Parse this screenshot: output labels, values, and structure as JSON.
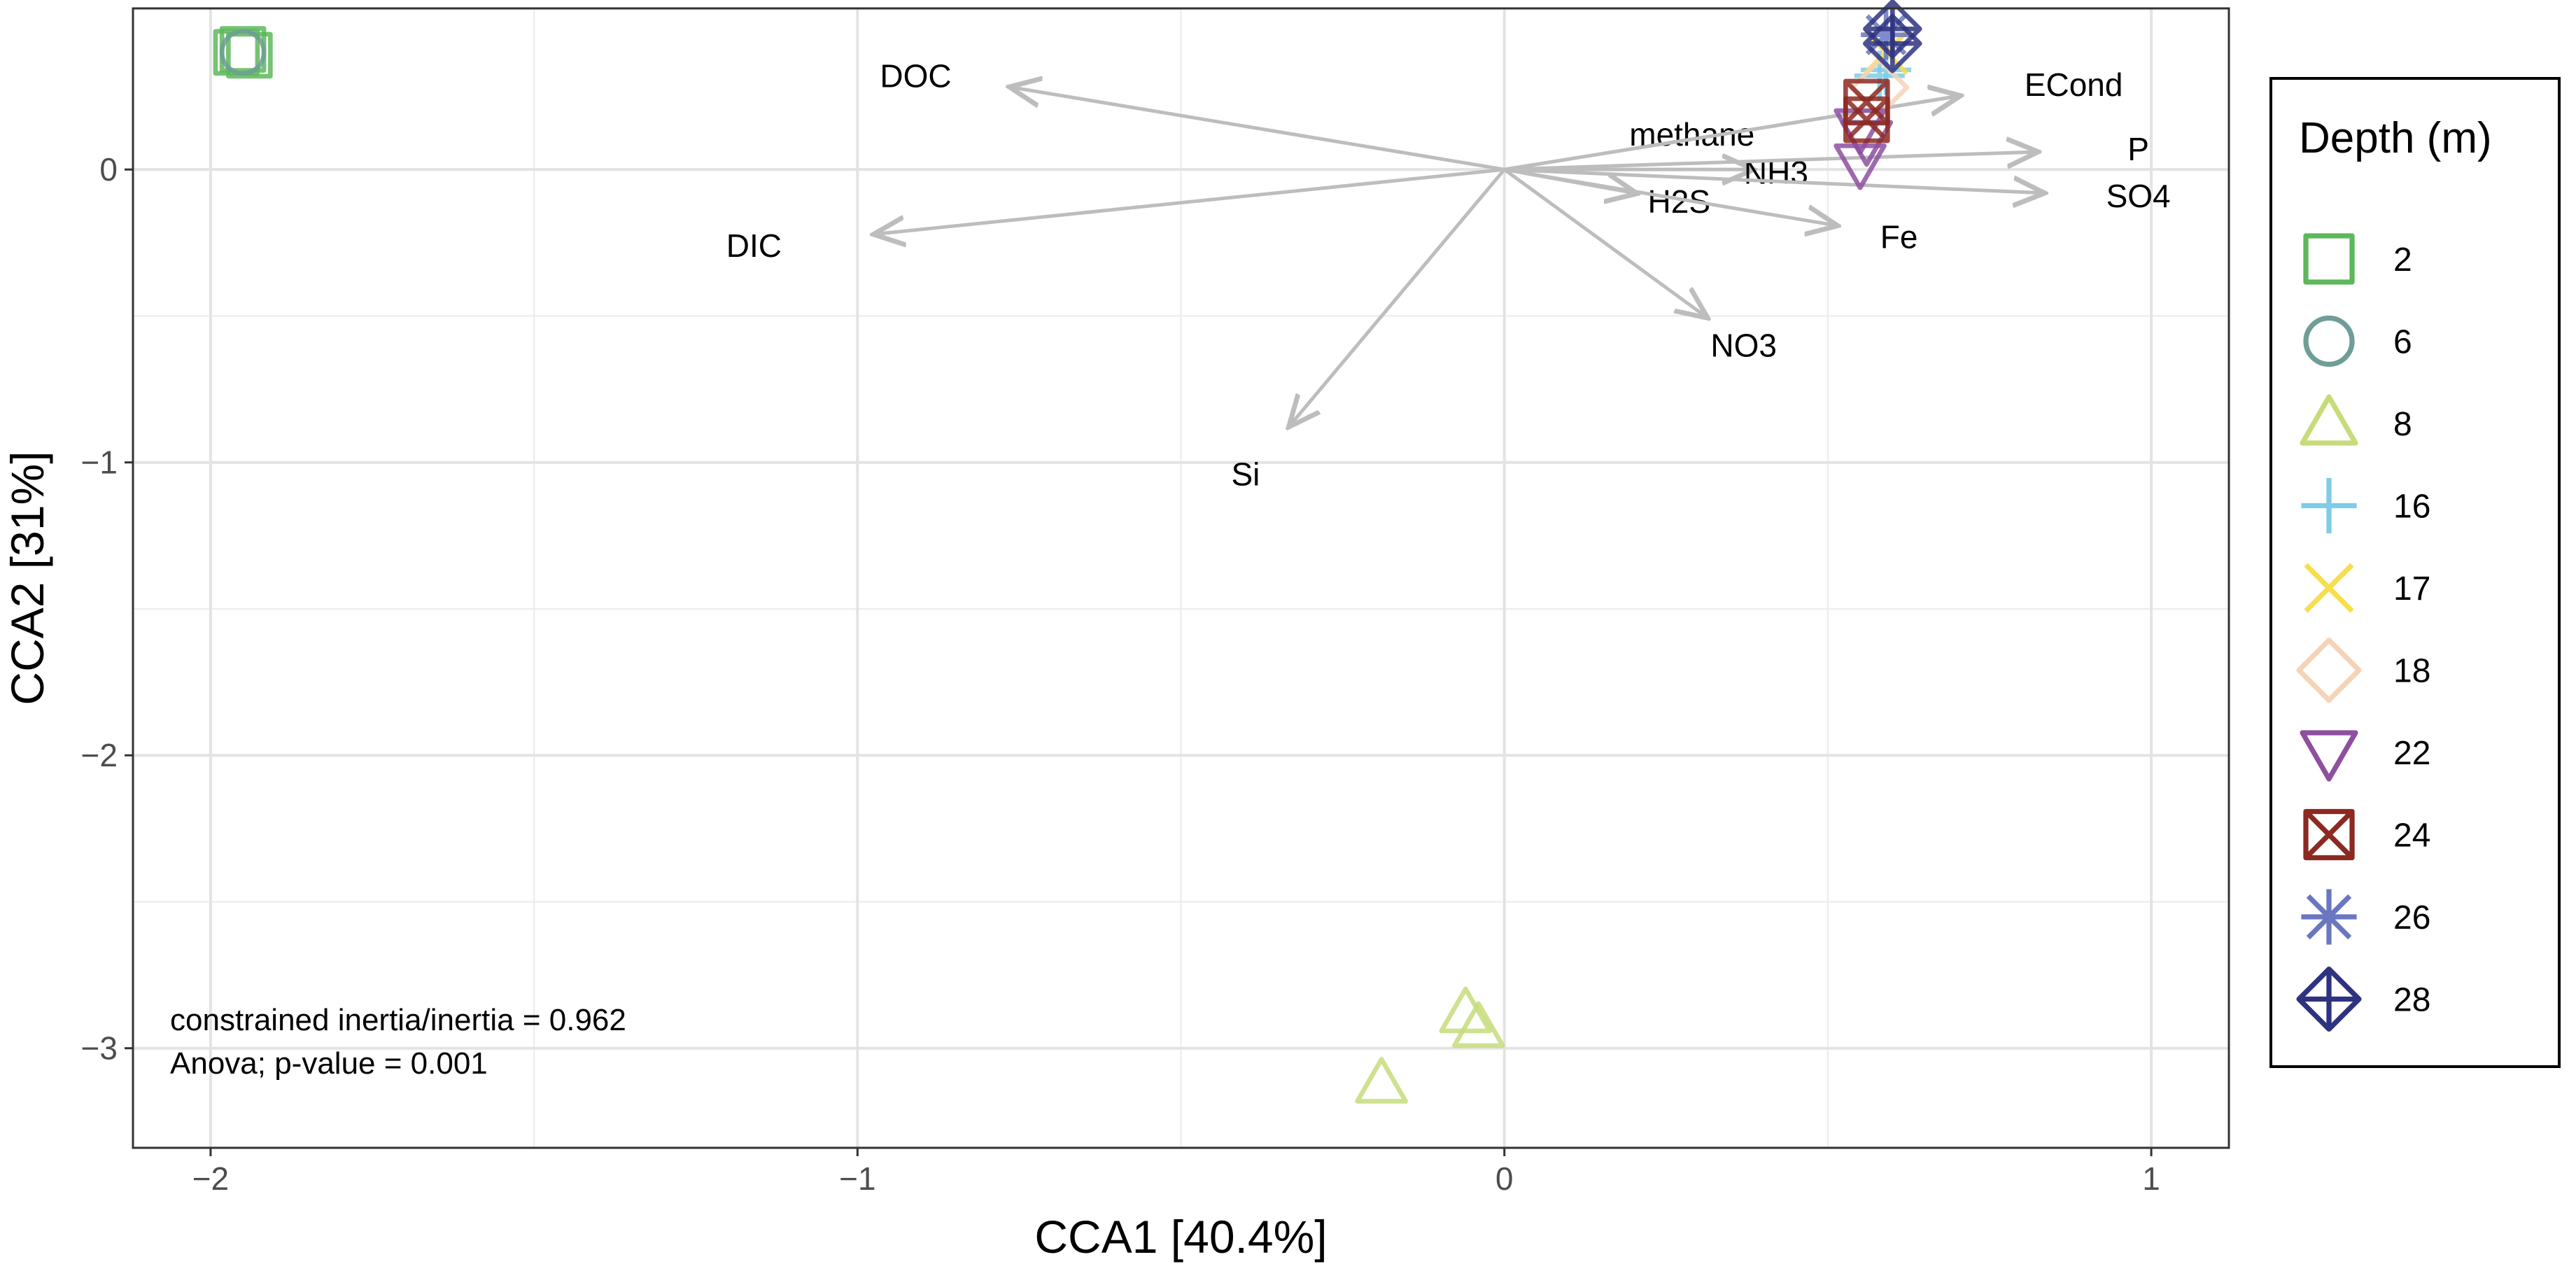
{
  "chart_data": {
    "type": "scatter",
    "title": "",
    "xlabel": "CCA1   [40.4%]",
    "ylabel": "CCA2   [31%]",
    "xlim": [
      -2.12,
      1.12
    ],
    "ylim": [
      -3.34,
      0.55
    ],
    "x_ticks": [
      -2,
      -1,
      0,
      1
    ],
    "x_tick_labels": [
      "−2",
      "−1",
      "0",
      "1"
    ],
    "y_ticks": [
      -3,
      -2,
      -1,
      0
    ],
    "y_tick_labels": [
      "−3",
      "−2",
      "−1",
      "0"
    ],
    "x_minor": [
      -1.5,
      -0.5,
      0.5
    ],
    "y_minor": [
      -2.5,
      -1.5,
      -0.5
    ],
    "grid": true,
    "legend": {
      "title": "Depth (m)",
      "position": "right",
      "entries": [
        {
          "label": "2",
          "shape": "square",
          "color": "#5DB85B"
        },
        {
          "label": "6",
          "shape": "circle",
          "color": "#6F9E97"
        },
        {
          "label": "8",
          "shape": "triangle",
          "color": "#C6DC7A"
        },
        {
          "label": "16",
          "shape": "plus",
          "color": "#7ECCE8"
        },
        {
          "label": "17",
          "shape": "cross",
          "color": "#F7DE4D"
        },
        {
          "label": "18",
          "shape": "diamond",
          "color": "#F6D3B6"
        },
        {
          "label": "22",
          "shape": "triangle-down",
          "color": "#8E4FA0"
        },
        {
          "label": "24",
          "shape": "square-cross",
          "color": "#8C2A22"
        },
        {
          "label": "26",
          "shape": "asterisk",
          "color": "#6A77C0"
        },
        {
          "label": "28",
          "shape": "diamond-plus",
          "color": "#2E3380"
        }
      ]
    },
    "points": [
      {
        "depth": "2",
        "x": -1.96,
        "y": 0.4
      },
      {
        "depth": "2",
        "x": -1.95,
        "y": 0.41
      },
      {
        "depth": "2",
        "x": -1.94,
        "y": 0.39
      },
      {
        "depth": "6",
        "x": -1.95,
        "y": 0.4
      },
      {
        "depth": "8",
        "x": -0.06,
        "y": -2.88
      },
      {
        "depth": "8",
        "x": -0.04,
        "y": -2.93
      },
      {
        "depth": "8",
        "x": -0.19,
        "y": -3.12
      },
      {
        "depth": "16",
        "x": 0.58,
        "y": 0.32
      },
      {
        "depth": "16",
        "x": 0.59,
        "y": 0.34
      },
      {
        "depth": "17",
        "x": 0.59,
        "y": 0.4
      },
      {
        "depth": "18",
        "x": 0.58,
        "y": 0.28
      },
      {
        "depth": "22",
        "x": 0.55,
        "y": 0.14
      },
      {
        "depth": "22",
        "x": 0.56,
        "y": 0.1
      },
      {
        "depth": "22",
        "x": 0.55,
        "y": 0.02
      },
      {
        "depth": "24",
        "x": 0.56,
        "y": 0.23
      },
      {
        "depth": "24",
        "x": 0.56,
        "y": 0.17
      },
      {
        "depth": "26",
        "x": 0.59,
        "y": 0.46
      },
      {
        "depth": "28",
        "x": 0.6,
        "y": 0.48
      },
      {
        "depth": "28",
        "x": 0.6,
        "y": 0.43
      }
    ],
    "arrow_color": "#BDBDBD",
    "arrows": [
      {
        "name": "DOC",
        "x": -0.76,
        "y": 0.28,
        "lx": -0.91,
        "ly": 0.32
      },
      {
        "name": "DIC",
        "x": -0.97,
        "y": -0.22,
        "lx": -1.16,
        "ly": -0.26
      },
      {
        "name": "methane",
        "x": 0.7,
        "y": 0.25,
        "lx": 0.29,
        "ly": 0.12
      },
      {
        "name": "ECond",
        "x": 0.7,
        "y": 0.25,
        "lx": 0.88,
        "ly": 0.29
      },
      {
        "name": "NH3",
        "x": 0.38,
        "y": 0.0,
        "lx": 0.42,
        "ly": -0.01
      },
      {
        "name": "H2S",
        "x": 0.2,
        "y": -0.08,
        "lx": 0.27,
        "ly": -0.11
      },
      {
        "name": "P",
        "x": 0.82,
        "y": 0.06,
        "lx": 0.98,
        "ly": 0.07
      },
      {
        "name": "SO4",
        "x": 0.83,
        "y": -0.08,
        "lx": 0.98,
        "ly": -0.09
      },
      {
        "name": "Fe",
        "x": 0.51,
        "y": -0.19,
        "lx": 0.61,
        "ly": -0.23
      },
      {
        "name": "NO3",
        "x": 0.31,
        "y": -0.5,
        "lx": 0.37,
        "ly": -0.6
      },
      {
        "name": "Si",
        "x": -0.33,
        "y": -0.87,
        "lx": -0.4,
        "ly": -1.04
      }
    ],
    "annotations": [
      "constrained inertia/inertia = 0.962",
      "Anova; p-value = 0.001"
    ]
  }
}
